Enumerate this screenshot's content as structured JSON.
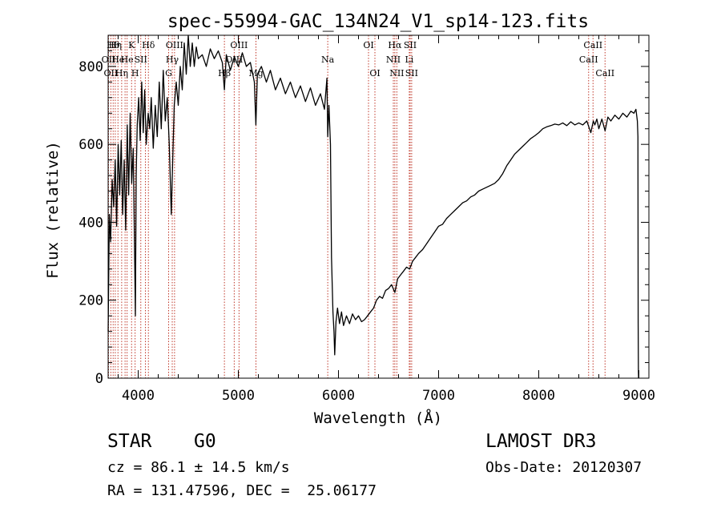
{
  "chart_data": {
    "type": "line",
    "title": "spec-55994-GAC_134N24_V1_sp14-123.fits",
    "xlabel": "Wavelength (Å)",
    "ylabel": "Flux (relative)",
    "xlim": [
      3700,
      9100
    ],
    "ylim": [
      0,
      880
    ],
    "xticks": [
      4000,
      5000,
      6000,
      7000,
      8000,
      9000
    ],
    "yticks": [
      0,
      200,
      400,
      600,
      800
    ],
    "grid": false,
    "series": [
      {
        "name": "flux",
        "points": [
          [
            3700,
            120
          ],
          [
            3712,
            420
          ],
          [
            3725,
            350
          ],
          [
            3740,
            510
          ],
          [
            3755,
            440
          ],
          [
            3770,
            560
          ],
          [
            3785,
            390
          ],
          [
            3800,
            600
          ],
          [
            3815,
            470
          ],
          [
            3830,
            610
          ],
          [
            3845,
            420
          ],
          [
            3860,
            560
          ],
          [
            3875,
            380
          ],
          [
            3890,
            650
          ],
          [
            3905,
            470
          ],
          [
            3920,
            680
          ],
          [
            3935,
            500
          ],
          [
            3950,
            590
          ],
          [
            3965,
            310
          ],
          [
            3972,
            160
          ],
          [
            3980,
            520
          ],
          [
            3990,
            650
          ],
          [
            4005,
            720
          ],
          [
            4020,
            610
          ],
          [
            4035,
            760
          ],
          [
            4050,
            630
          ],
          [
            4065,
            740
          ],
          [
            4080,
            600
          ],
          [
            4100,
            680
          ],
          [
            4115,
            640
          ],
          [
            4130,
            720
          ],
          [
            4150,
            590
          ],
          [
            4170,
            700
          ],
          [
            4190,
            620
          ],
          [
            4210,
            760
          ],
          [
            4230,
            640
          ],
          [
            4250,
            790
          ],
          [
            4270,
            660
          ],
          [
            4290,
            720
          ],
          [
            4310,
            600
          ],
          [
            4330,
            420
          ],
          [
            4345,
            560
          ],
          [
            4360,
            700
          ],
          [
            4380,
            760
          ],
          [
            4400,
            700
          ],
          [
            4420,
            800
          ],
          [
            4440,
            740
          ],
          [
            4460,
            860
          ],
          [
            4480,
            780
          ],
          [
            4500,
            880
          ],
          [
            4520,
            800
          ],
          [
            4540,
            860
          ],
          [
            4560,
            800
          ],
          [
            4580,
            850
          ],
          [
            4600,
            820
          ],
          [
            4640,
            830
          ],
          [
            4680,
            800
          ],
          [
            4720,
            845
          ],
          [
            4760,
            820
          ],
          [
            4800,
            840
          ],
          [
            4840,
            810
          ],
          [
            4861,
            740
          ],
          [
            4880,
            830
          ],
          [
            4920,
            790
          ],
          [
            4960,
            825
          ],
          [
            5000,
            800
          ],
          [
            5040,
            835
          ],
          [
            5080,
            800
          ],
          [
            5120,
            810
          ],
          [
            5160,
            760
          ],
          [
            5175,
            650
          ],
          [
            5190,
            780
          ],
          [
            5230,
            800
          ],
          [
            5280,
            760
          ],
          [
            5320,
            790
          ],
          [
            5370,
            740
          ],
          [
            5420,
            770
          ],
          [
            5470,
            730
          ],
          [
            5520,
            760
          ],
          [
            5570,
            720
          ],
          [
            5620,
            750
          ],
          [
            5670,
            710
          ],
          [
            5720,
            745
          ],
          [
            5770,
            700
          ],
          [
            5820,
            730
          ],
          [
            5860,
            690
          ],
          [
            5885,
            770
          ],
          [
            5893,
            620
          ],
          [
            5905,
            700
          ],
          [
            5920,
            600
          ],
          [
            5930,
            310
          ],
          [
            5945,
            170
          ],
          [
            5955,
            120
          ],
          [
            5962,
            60
          ],
          [
            5975,
            145
          ],
          [
            5990,
            180
          ],
          [
            6010,
            140
          ],
          [
            6030,
            170
          ],
          [
            6050,
            135
          ],
          [
            6080,
            160
          ],
          [
            6110,
            140
          ],
          [
            6140,
            165
          ],
          [
            6170,
            150
          ],
          [
            6200,
            160
          ],
          [
            6230,
            145
          ],
          [
            6260,
            150
          ],
          [
            6290,
            160
          ],
          [
            6320,
            170
          ],
          [
            6350,
            180
          ],
          [
            6380,
            200
          ],
          [
            6410,
            210
          ],
          [
            6440,
            205
          ],
          [
            6470,
            225
          ],
          [
            6500,
            230
          ],
          [
            6530,
            240
          ],
          [
            6563,
            220
          ],
          [
            6590,
            255
          ],
          [
            6620,
            265
          ],
          [
            6650,
            275
          ],
          [
            6680,
            285
          ],
          [
            6710,
            280
          ],
          [
            6740,
            300
          ],
          [
            6770,
            310
          ],
          [
            6800,
            320
          ],
          [
            6840,
            330
          ],
          [
            6880,
            345
          ],
          [
            6920,
            360
          ],
          [
            6960,
            375
          ],
          [
            7000,
            390
          ],
          [
            7040,
            395
          ],
          [
            7080,
            410
          ],
          [
            7120,
            420
          ],
          [
            7160,
            430
          ],
          [
            7200,
            440
          ],
          [
            7240,
            450
          ],
          [
            7280,
            455
          ],
          [
            7320,
            465
          ],
          [
            7360,
            470
          ],
          [
            7400,
            480
          ],
          [
            7440,
            485
          ],
          [
            7480,
            490
          ],
          [
            7520,
            495
          ],
          [
            7560,
            500
          ],
          [
            7600,
            510
          ],
          [
            7640,
            525
          ],
          [
            7680,
            545
          ],
          [
            7720,
            560
          ],
          [
            7760,
            575
          ],
          [
            7800,
            585
          ],
          [
            7840,
            595
          ],
          [
            7880,
            605
          ],
          [
            7920,
            615
          ],
          [
            7960,
            622
          ],
          [
            8000,
            630
          ],
          [
            8040,
            640
          ],
          [
            8080,
            645
          ],
          [
            8120,
            648
          ],
          [
            8160,
            652
          ],
          [
            8200,
            650
          ],
          [
            8240,
            655
          ],
          [
            8280,
            648
          ],
          [
            8320,
            658
          ],
          [
            8360,
            650
          ],
          [
            8400,
            655
          ],
          [
            8440,
            650
          ],
          [
            8480,
            660
          ],
          [
            8500,
            645
          ],
          [
            8520,
            630
          ],
          [
            8545,
            660
          ],
          [
            8560,
            650
          ],
          [
            8580,
            665
          ],
          [
            8600,
            640
          ],
          [
            8630,
            665
          ],
          [
            8662,
            635
          ],
          [
            8690,
            670
          ],
          [
            8720,
            660
          ],
          [
            8760,
            675
          ],
          [
            8800,
            665
          ],
          [
            8840,
            680
          ],
          [
            8880,
            670
          ],
          [
            8920,
            685
          ],
          [
            8950,
            680
          ],
          [
            8970,
            690
          ],
          [
            8985,
            660
          ],
          [
            8990,
            620
          ],
          [
            8993,
            140
          ],
          [
            8995,
            20
          ],
          [
            8997,
            0
          ]
        ]
      }
    ],
    "lines": [
      {
        "x": 3704,
        "label": "OII",
        "row": 1
      },
      {
        "x": 3727,
        "label": "OII",
        "row": 2
      },
      {
        "x": 3750,
        "label": "Hθ",
        "row": 0
      },
      {
        "x": 3771,
        "label": "Hη",
        "row": 0
      },
      {
        "x": 3798,
        "label": "He",
        "row": 1
      },
      {
        "x": 3835,
        "label": "Hη",
        "row": 2
      },
      {
        "x": 3869,
        "label": "",
        "row": 1
      },
      {
        "x": 3889,
        "label": "He",
        "row": 1
      },
      {
        "x": 3934,
        "label": "K",
        "row": 0
      },
      {
        "x": 3969,
        "label": "H",
        "row": 2
      },
      {
        "x": 4026,
        "label": "SII",
        "row": 1
      },
      {
        "x": 4072,
        "label": "",
        "row": 1
      },
      {
        "x": 4102,
        "label": "Hδ",
        "row": 0
      },
      {
        "x": 4304,
        "label": "G",
        "row": 2
      },
      {
        "x": 4340,
        "label": "Hγ",
        "row": 1
      },
      {
        "x": 4363,
        "label": "OIII",
        "row": 0
      },
      {
        "x": 4861,
        "label": "Hβ",
        "row": 2
      },
      {
        "x": 4959,
        "label": "OIII",
        "row": 1
      },
      {
        "x": 5007,
        "label": "OIII",
        "row": 0
      },
      {
        "x": 5176,
        "label": "Mg",
        "row": 2
      },
      {
        "x": 5893,
        "label": "Na",
        "row": 1
      },
      {
        "x": 6300,
        "label": "OI",
        "row": 0
      },
      {
        "x": 6364,
        "label": "OI",
        "row": 2
      },
      {
        "x": 6548,
        "label": "NII",
        "row": 1
      },
      {
        "x": 6563,
        "label": "Hα",
        "row": 0
      },
      {
        "x": 6583,
        "label": "NII",
        "row": 2
      },
      {
        "x": 6707,
        "label": "Li",
        "row": 1
      },
      {
        "x": 6716,
        "label": "SII",
        "row": 0
      },
      {
        "x": 6731,
        "label": "SII",
        "row": 2
      },
      {
        "x": 8498,
        "label": "CaII",
        "row": 1
      },
      {
        "x": 8542,
        "label": "CaII",
        "row": 0
      },
      {
        "x": 8662,
        "label": "CaII",
        "row": 2
      }
    ]
  },
  "info": {
    "class_label": "STAR",
    "subclass": "G0",
    "redshift": "cz = 86.1 ± 14.5 km/s",
    "coords": "RA = 131.47596, DEC =  25.06177",
    "survey": "LAMOST DR3",
    "obs_date": "Obs-Date: 20120307"
  }
}
